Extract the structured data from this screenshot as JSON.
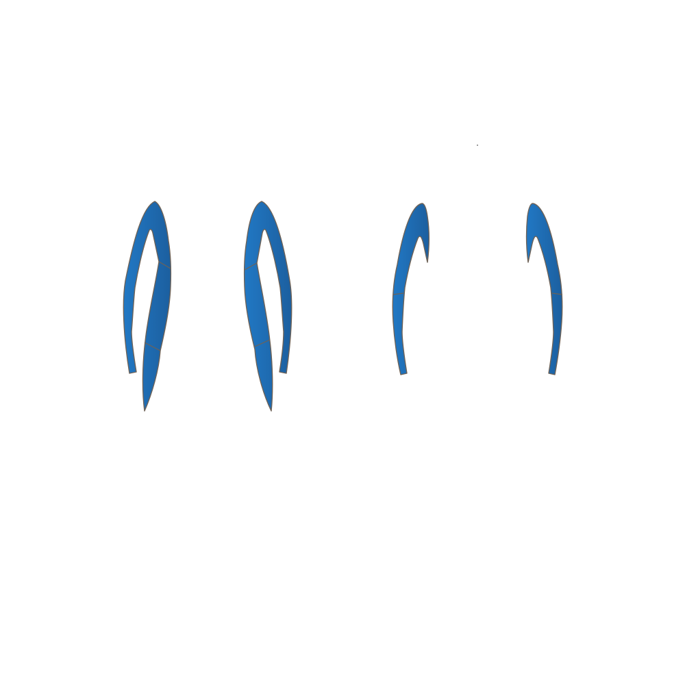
{
  "colors": {
    "background": "#ffffff",
    "fill_light": "#2178c4",
    "fill_dark": "#1c5f9f",
    "outline": "#6e6257",
    "speck": "#555555"
  },
  "figures": [
    {
      "name": "closed-loop-left",
      "description_icon": "blue-curved-loop-icon"
    },
    {
      "name": "closed-loop-right",
      "description_icon": "blue-curved-loop-icon"
    },
    {
      "name": "open-hook-left",
      "description_icon": "blue-hook-icon"
    },
    {
      "name": "open-hook-right",
      "description_icon": "blue-hook-icon"
    }
  ]
}
